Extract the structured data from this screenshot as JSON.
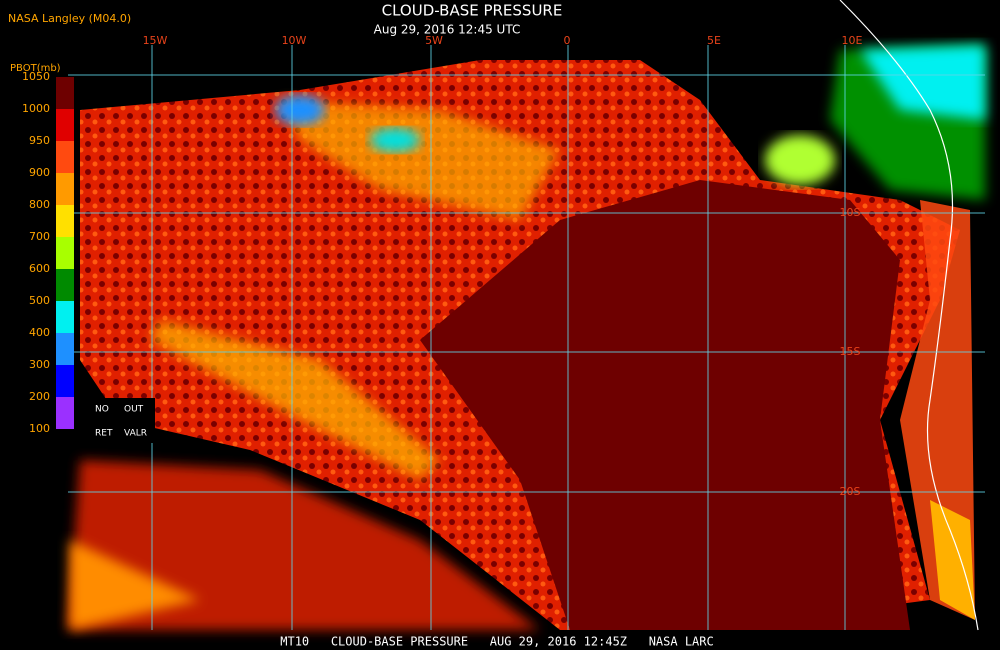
{
  "header": {
    "agency": "NASA Langley (M04.0)",
    "title": "CLOUD-BASE PRESSURE",
    "timestamp": "Aug 29, 2016 12:45 UTC"
  },
  "legend": {
    "title": "PBOT(mb)",
    "ticks": [
      1050,
      1000,
      950,
      900,
      800,
      700,
      600,
      500,
      400,
      300,
      200,
      100
    ],
    "colors": [
      "#6e0000",
      "#e00000",
      "#ff4a10",
      "#ff9a00",
      "#ffe000",
      "#a8ff00",
      "#008a00",
      "#00f0f0",
      "#1e90ff",
      "#0000ff",
      "#9b30ff"
    ],
    "notes": [
      "NO",
      "OUT",
      "RET",
      "VALR"
    ]
  },
  "map": {
    "lon_labels": [
      "15W",
      "10W",
      "5W",
      "0",
      "5E",
      "10E"
    ],
    "lat_labels": [
      "10S",
      "15S",
      "20S"
    ]
  },
  "footer": "MT10   CLOUD-BASE PRESSURE   AUG 29, 2016 12:45Z   NASA LARC"
}
